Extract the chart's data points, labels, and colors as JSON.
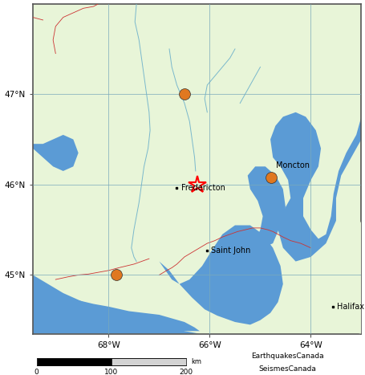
{
  "lon_min": -69.5,
  "lon_max": -63.0,
  "lat_min": 44.35,
  "lat_max": 48.0,
  "land_color": "#e8f5d8",
  "water_color": "#5b9bd5",
  "grid_color": "#7aaabb",
  "border_color": "#cc0000",
  "grid_lons": [
    -68,
    -66,
    -64
  ],
  "grid_lats": [
    45,
    46,
    47
  ],
  "cities": [
    {
      "name": "Fredericton",
      "lon": -66.65,
      "lat": 45.965
    },
    {
      "name": "Moncton",
      "lon": -64.77,
      "lat": 46.09
    },
    {
      "name": "Saint John",
      "lon": -66.05,
      "lat": 45.27
    },
    {
      "name": "Halifax",
      "lon": -63.57,
      "lat": 44.65
    }
  ],
  "earthquakes": [
    {
      "lon": -66.5,
      "lat": 47.0,
      "color": "#e07820",
      "size": 100
    },
    {
      "lon": -64.78,
      "lat": 46.08,
      "color": "#e07820",
      "size": 100
    },
    {
      "lon": -67.85,
      "lat": 45.0,
      "color": "#e07820",
      "size": 100
    }
  ],
  "star": {
    "lon": -66.25,
    "lat": 46.0,
    "color": "red"
  },
  "credit1": "EarthquakesCanada",
  "credit2": "SeismesCanada",
  "figsize": [
    4.55,
    4.67
  ],
  "dpi": 100
}
